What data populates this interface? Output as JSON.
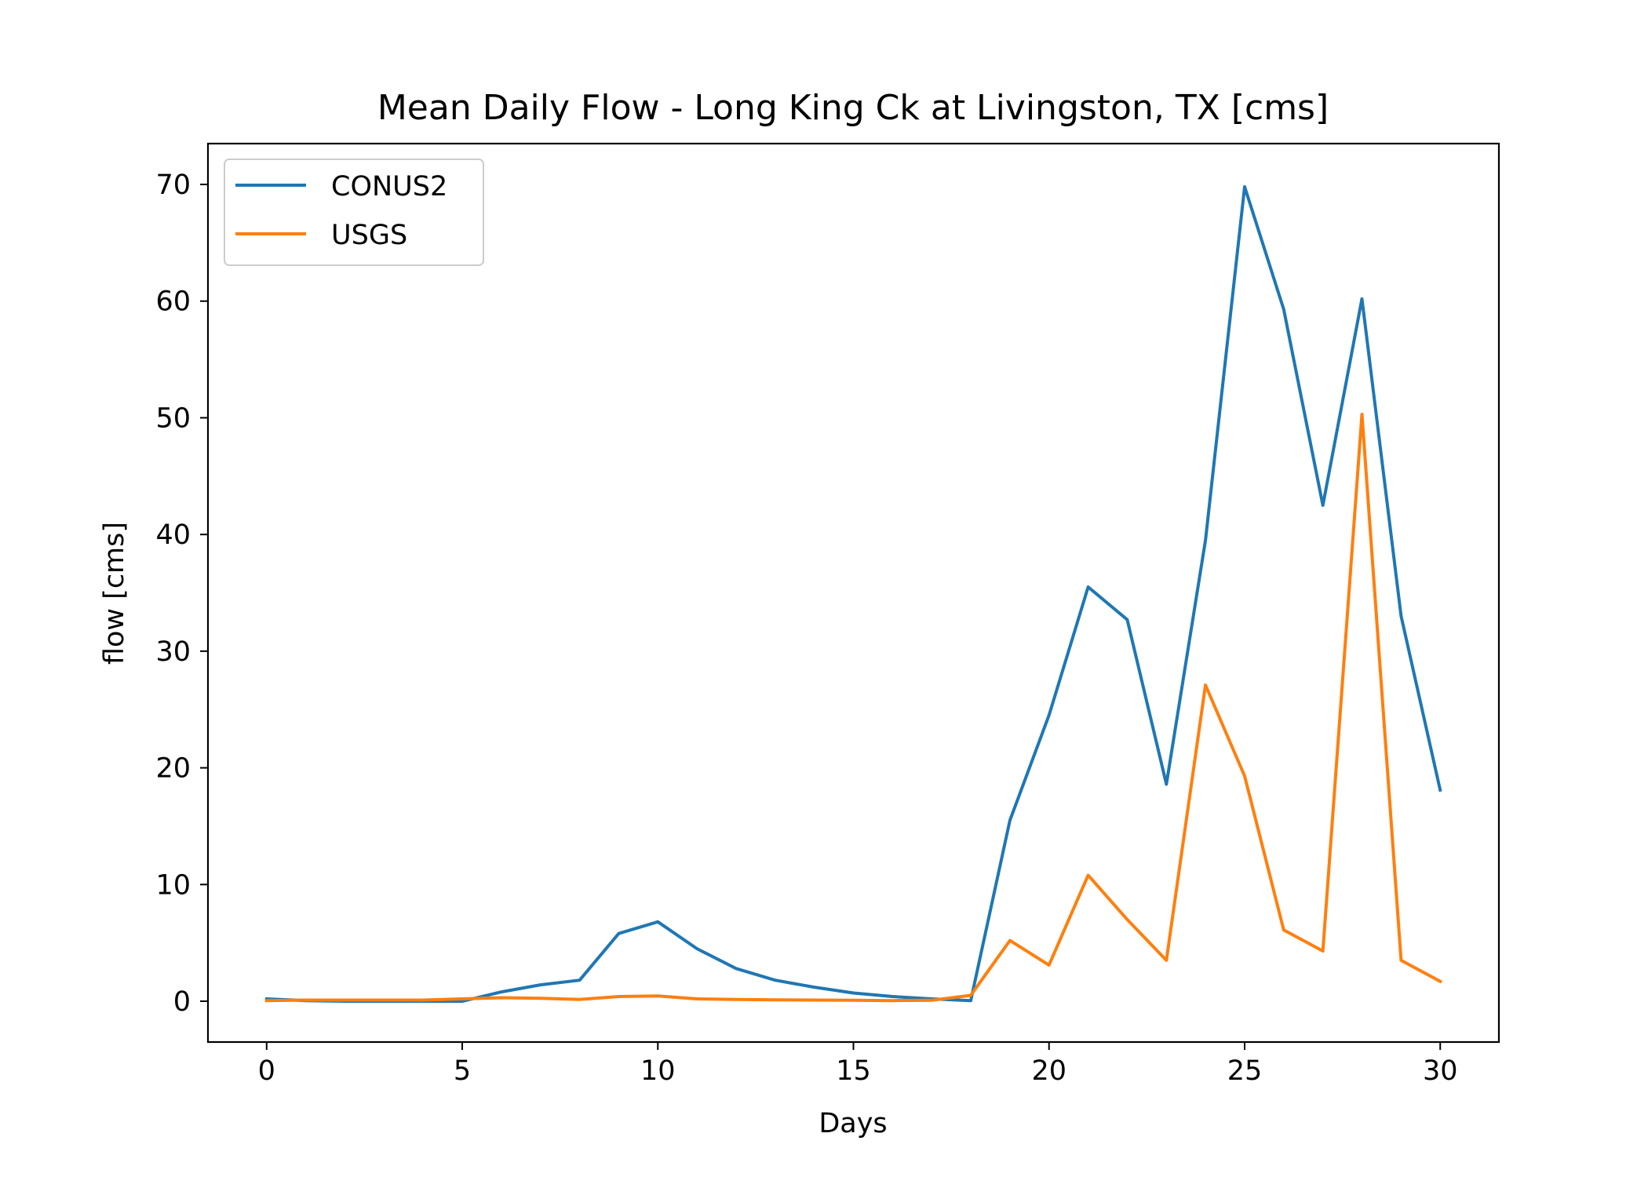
{
  "chart_data": {
    "type": "line",
    "title": "Mean Daily Flow - Long King Ck at Livingston, TX [cms]",
    "xlabel": "Days",
    "ylabel": "flow [cms]",
    "xlim": [
      -1.5,
      31.5
    ],
    "ylim": [
      -3.5,
      73.5
    ],
    "xticks": [
      0,
      5,
      10,
      15,
      20,
      25,
      30
    ],
    "yticks": [
      0,
      10,
      20,
      30,
      40,
      50,
      60,
      70
    ],
    "grid": false,
    "legend_position": "top-left",
    "x": [
      0,
      1,
      2,
      3,
      4,
      5,
      6,
      7,
      8,
      9,
      10,
      11,
      12,
      13,
      14,
      15,
      16,
      17,
      18,
      19,
      20,
      21,
      22,
      23,
      24,
      25,
      26,
      27,
      28,
      29,
      30
    ],
    "series": [
      {
        "name": "CONUS2",
        "color": "#1f77b4",
        "values": [
          0.2,
          0.05,
          0.0,
          0.0,
          0.0,
          0.0,
          0.8,
          1.4,
          1.8,
          5.8,
          6.8,
          4.5,
          2.8,
          1.8,
          1.2,
          0.7,
          0.4,
          0.2,
          0.05,
          15.5,
          24.5,
          35.5,
          32.7,
          18.6,
          39.5,
          69.8,
          59.3,
          42.5,
          60.2,
          33.0,
          18.1
        ]
      },
      {
        "name": "USGS",
        "color": "#ff7f0e",
        "values": [
          0.05,
          0.1,
          0.1,
          0.1,
          0.1,
          0.2,
          0.3,
          0.25,
          0.15,
          0.4,
          0.45,
          0.2,
          0.15,
          0.12,
          0.1,
          0.08,
          0.05,
          0.08,
          0.5,
          5.2,
          3.1,
          10.8,
          7.0,
          3.5,
          27.1,
          19.3,
          6.1,
          4.3,
          50.3,
          3.5,
          1.7
        ]
      }
    ]
  }
}
